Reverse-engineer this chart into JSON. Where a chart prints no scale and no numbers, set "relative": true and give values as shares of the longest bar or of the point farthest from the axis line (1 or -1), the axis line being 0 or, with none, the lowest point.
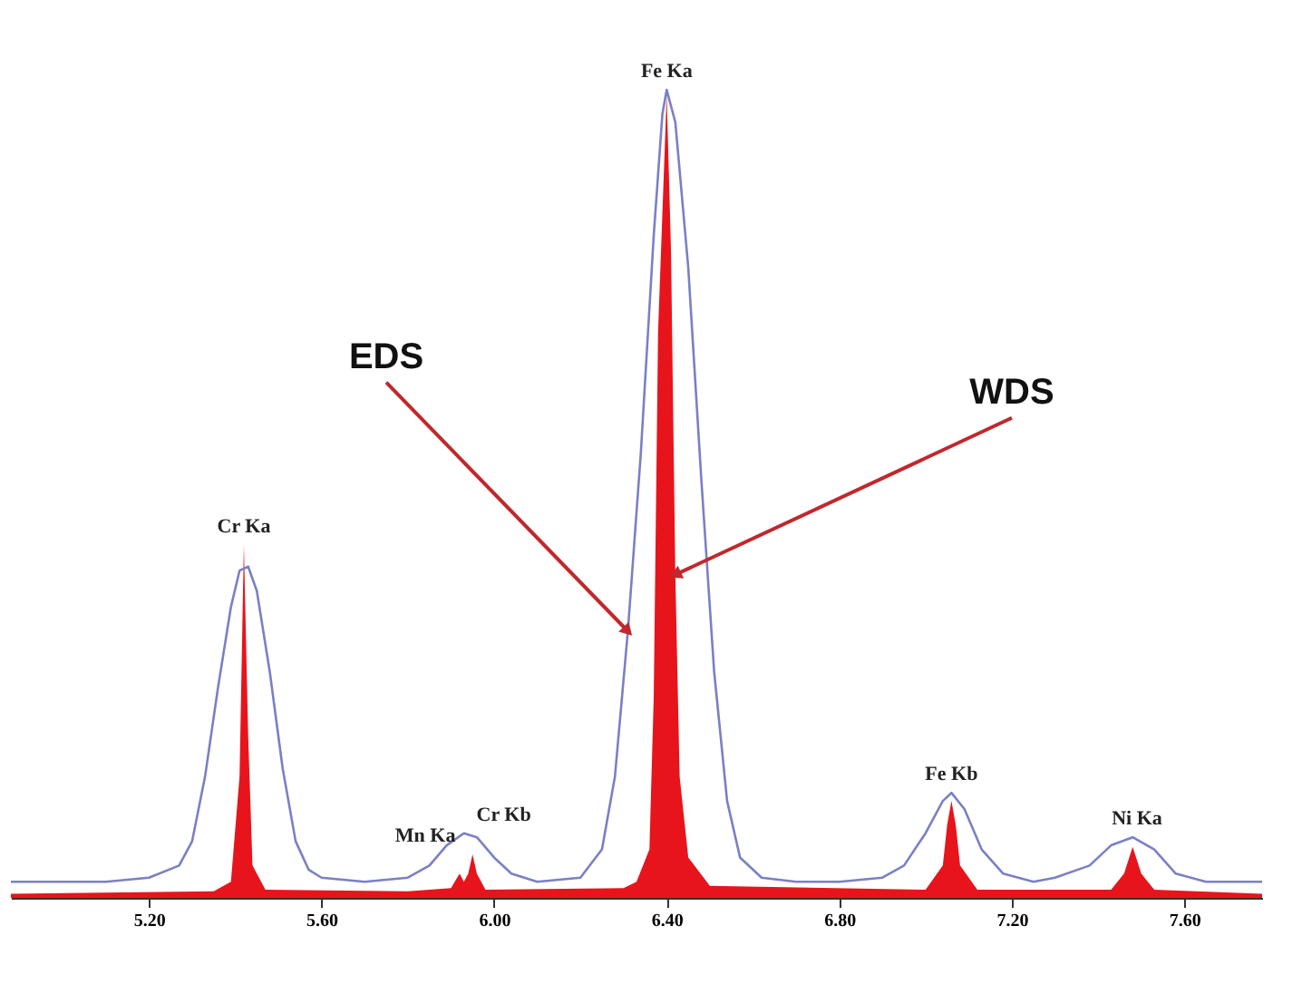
{
  "chart_data": {
    "type": "area",
    "relative": true,
    "xlim": [
      4.88,
      7.78
    ],
    "xticks": [
      {
        "value": 5.2,
        "label": "5.20"
      },
      {
        "value": 5.6,
        "label": "5.60"
      },
      {
        "value": 6.0,
        "label": "6.00"
      },
      {
        "value": 6.4,
        "label": "6.40"
      },
      {
        "value": 6.8,
        "label": "6.80"
      },
      {
        "value": 7.2,
        "label": "7.20"
      },
      {
        "value": 7.6,
        "label": "7.60"
      }
    ],
    "grid": false,
    "series": [
      {
        "name": "WDS",
        "color": "#e8141b",
        "x": [
          4.88,
          5.35,
          5.39,
          5.41,
          5.42,
          5.43,
          5.44,
          5.47,
          5.8,
          5.9,
          5.92,
          5.93,
          5.94,
          5.95,
          5.96,
          5.98,
          6.3,
          6.33,
          6.36,
          6.37,
          6.38,
          6.4,
          6.41,
          6.42,
          6.43,
          6.45,
          6.5,
          7.0,
          7.04,
          7.05,
          7.06,
          7.07,
          7.08,
          7.12,
          7.43,
          7.46,
          7.48,
          7.5,
          7.53,
          7.78
        ],
        "values": [
          0.005,
          0.008,
          0.02,
          0.15,
          0.437,
          0.2,
          0.04,
          0.01,
          0.008,
          0.012,
          0.03,
          0.02,
          0.03,
          0.054,
          0.03,
          0.01,
          0.012,
          0.02,
          0.06,
          0.25,
          0.7,
          0.994,
          0.8,
          0.4,
          0.15,
          0.05,
          0.015,
          0.01,
          0.04,
          0.09,
          0.12,
          0.09,
          0.04,
          0.01,
          0.01,
          0.03,
          0.063,
          0.03,
          0.01,
          0.005
        ]
      },
      {
        "name": "EDS",
        "type": "line",
        "color": "#7a80c4",
        "x": [
          4.88,
          5.0,
          5.1,
          5.2,
          5.27,
          5.3,
          5.33,
          5.36,
          5.39,
          5.41,
          5.43,
          5.45,
          5.48,
          5.51,
          5.54,
          5.57,
          5.6,
          5.7,
          5.8,
          5.85,
          5.89,
          5.93,
          5.96,
          6.0,
          6.04,
          6.1,
          6.2,
          6.25,
          6.28,
          6.31,
          6.34,
          6.37,
          6.39,
          6.4,
          6.42,
          6.45,
          6.48,
          6.51,
          6.54,
          6.57,
          6.62,
          6.7,
          6.8,
          6.9,
          6.95,
          7.0,
          7.04,
          7.06,
          7.09,
          7.13,
          7.18,
          7.25,
          7.3,
          7.38,
          7.43,
          7.48,
          7.53,
          7.58,
          7.65,
          7.78
        ],
        "values": [
          0.02,
          0.02,
          0.02,
          0.025,
          0.04,
          0.07,
          0.15,
          0.26,
          0.36,
          0.405,
          0.41,
          0.38,
          0.28,
          0.16,
          0.07,
          0.035,
          0.025,
          0.02,
          0.025,
          0.04,
          0.065,
          0.08,
          0.075,
          0.05,
          0.03,
          0.02,
          0.025,
          0.06,
          0.15,
          0.33,
          0.55,
          0.82,
          0.97,
          1.0,
          0.96,
          0.78,
          0.52,
          0.28,
          0.12,
          0.05,
          0.025,
          0.02,
          0.02,
          0.025,
          0.04,
          0.08,
          0.12,
          0.13,
          0.11,
          0.06,
          0.03,
          0.02,
          0.025,
          0.04,
          0.065,
          0.075,
          0.06,
          0.03,
          0.02,
          0.02
        ]
      }
    ],
    "annotations": [
      {
        "text": "Cr Ka",
        "x": 5.42,
        "y": 0.437
      },
      {
        "text": "Mn Ka",
        "x": 5.95,
        "y": 0.054
      },
      {
        "text": "Cr Kb",
        "x": 5.93,
        "y": 0.08
      },
      {
        "text": "Fe Ka",
        "x": 6.4,
        "y": 1.0
      },
      {
        "text": "Fe Kb",
        "x": 7.06,
        "y": 0.13
      },
      {
        "text": "Ni Ka",
        "x": 7.49,
        "y": 0.075
      }
    ]
  }
}
